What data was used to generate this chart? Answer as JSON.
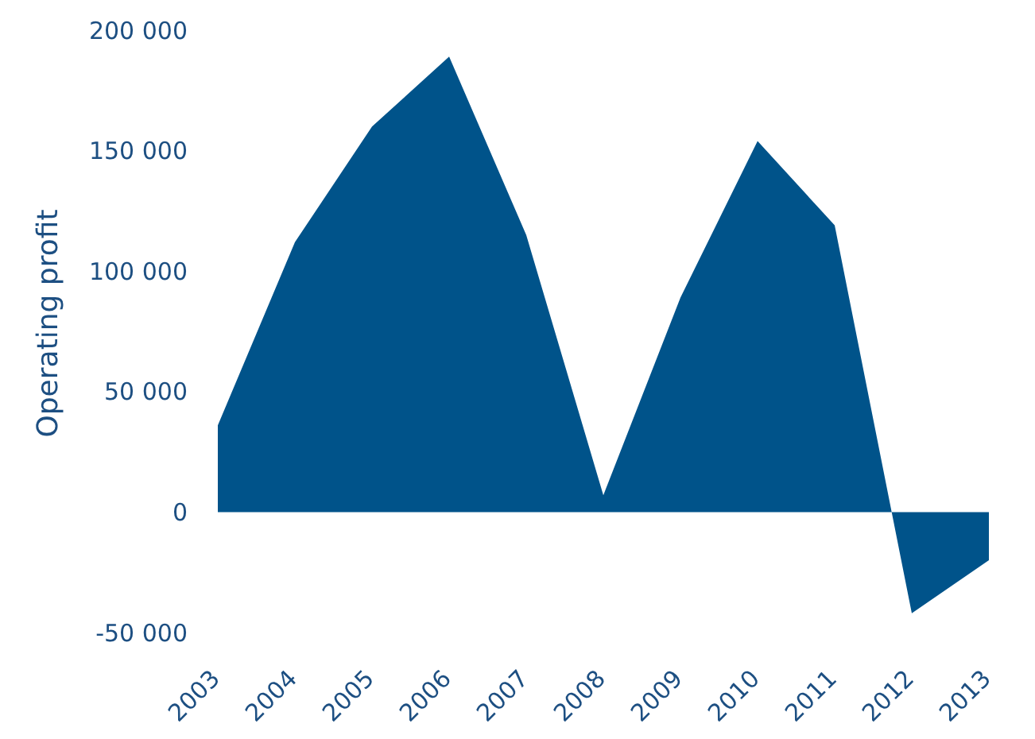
{
  "chart_data": {
    "type": "area",
    "ylabel": "Operating profit",
    "categories": [
      "2003",
      "2004",
      "2005",
      "2006",
      "2007",
      "2008",
      "2009",
      "2010",
      "2011",
      "2012",
      "2013"
    ],
    "values": [
      36000,
      112000,
      160000,
      189000,
      115000,
      7000,
      89000,
      154000,
      119000,
      -42000,
      -20000
    ],
    "color": "#00538a",
    "ylim": [
      -50000,
      200000
    ],
    "yticks": [
      {
        "value": -50000,
        "label": "-50 000"
      },
      {
        "value": 0,
        "label": "0"
      },
      {
        "value": 50000,
        "label": "50 000"
      },
      {
        "value": 100000,
        "label": "100 000"
      },
      {
        "value": 150000,
        "label": "150 000"
      },
      {
        "value": 200000,
        "label": "200 000"
      }
    ],
    "grid": false
  }
}
